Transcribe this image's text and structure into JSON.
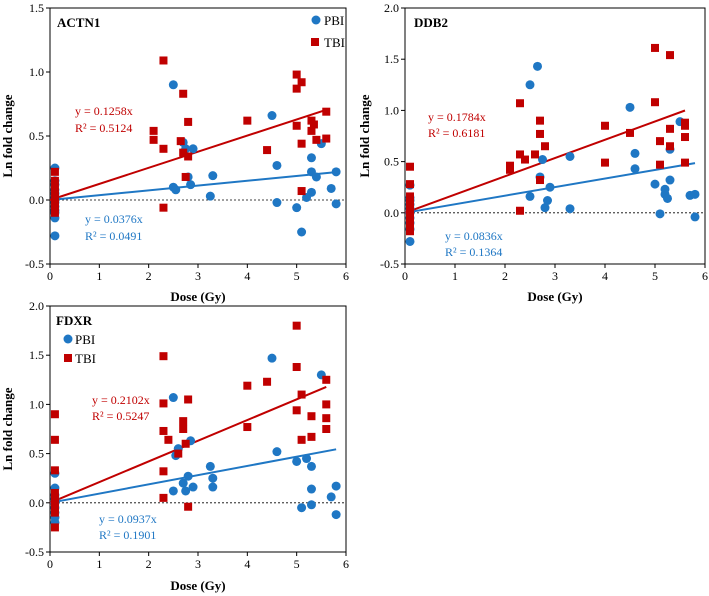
{
  "colors": {
    "PBI": "#1f77c4",
    "TBI": "#c00000",
    "axis": "#000000"
  },
  "chart_data": [
    {
      "type": "scatter",
      "title": "ACTN1",
      "xlabel": "Dose (Gy)",
      "ylabel": "Ln fold change",
      "xlim": [
        0,
        6
      ],
      "ylim": [
        -0.5,
        1.5
      ],
      "xticks": [
        "0",
        "1",
        "2",
        "3",
        "4",
        "5",
        "6"
      ],
      "yticks": [
        "-0.5",
        "0.0",
        "0.5",
        "1.0",
        "1.5"
      ],
      "legend": [
        "PBI",
        "TBI"
      ],
      "annotations": {
        "TBI_eq": "y = 0.1258x",
        "TBI_r2": "R² = 0.5124",
        "PBI_eq": "y = 0.0376x",
        "PBI_r2": "R² = 0.0491"
      },
      "series": [
        {
          "name": "PBI",
          "slope": 0.0376,
          "x": [
            0.1,
            0.1,
            0.1,
            0.1,
            0.1,
            0.1,
            0.1,
            0.1,
            0.1,
            0.1,
            0.1,
            0.1,
            2.5,
            2.5,
            2.55,
            2.7,
            2.75,
            2.8,
            2.85,
            2.9,
            3.25,
            3.3,
            4.5,
            4.6,
            4.6,
            5.0,
            5.1,
            5.2,
            5.3,
            5.3,
            5.3,
            5.4,
            5.5,
            5.7,
            5.8,
            5.8
          ],
          "y": [
            0.25,
            0.15,
            0.12,
            0.08,
            0.05,
            0.02,
            -0.02,
            -0.05,
            -0.08,
            -0.1,
            -0.14,
            -0.28,
            0.9,
            0.1,
            0.08,
            0.45,
            0.4,
            0.18,
            0.12,
            0.4,
            0.03,
            0.19,
            0.66,
            0.27,
            -0.02,
            -0.06,
            -0.25,
            0.02,
            0.33,
            0.22,
            0.06,
            0.18,
            0.44,
            0.09,
            -0.03,
            0.22
          ]
        },
        {
          "name": "TBI",
          "slope": 0.1258,
          "x": [
            0.1,
            0.1,
            0.1,
            0.1,
            0.1,
            0.1,
            0.1,
            0.1,
            0.1,
            2.1,
            2.1,
            2.3,
            2.3,
            2.3,
            2.65,
            2.7,
            2.7,
            2.75,
            2.8,
            2.8,
            4.0,
            4.4,
            5.0,
            5.0,
            5.0,
            5.1,
            5.1,
            5.1,
            5.3,
            5.3,
            5.35,
            5.4,
            5.6,
            5.6
          ],
          "y": [
            0.22,
            0.15,
            0.1,
            0.06,
            0.03,
            0.0,
            -0.03,
            -0.06,
            -0.1,
            0.54,
            0.47,
            1.09,
            0.4,
            -0.06,
            0.46,
            0.83,
            0.37,
            0.18,
            0.61,
            0.34,
            0.62,
            0.39,
            0.98,
            0.87,
            0.58,
            0.92,
            0.44,
            0.07,
            0.54,
            0.62,
            0.59,
            0.47,
            0.69,
            0.48
          ]
        }
      ]
    },
    {
      "type": "scatter",
      "title": "DDB2",
      "xlabel": "Dose (Gy)",
      "ylabel": "Ln fold change",
      "xlim": [
        0,
        6
      ],
      "ylim": [
        -0.5,
        2.0
      ],
      "xticks": [
        "0",
        "1",
        "2",
        "3",
        "4",
        "5",
        "6"
      ],
      "yticks": [
        "-0.5",
        "0.0",
        "0.5",
        "1.0",
        "1.5",
        "2.0"
      ],
      "legend": [],
      "annotations": {
        "TBI_eq": "y = 0.1784x",
        "TBI_r2": "R² = 0.6181",
        "PBI_eq": "y = 0.0836x",
        "PBI_r2": "R² = 0.1364"
      },
      "series": [
        {
          "name": "PBI",
          "slope": 0.0836,
          "x": [
            0.1,
            0.1,
            0.1,
            0.1,
            0.1,
            0.1,
            0.1,
            0.1,
            0.1,
            0.1,
            2.5,
            2.5,
            2.65,
            2.7,
            2.75,
            2.8,
            2.85,
            2.9,
            3.3,
            3.3,
            4.5,
            4.6,
            4.6,
            5.0,
            5.1,
            5.2,
            5.2,
            5.25,
            5.3,
            5.3,
            5.5,
            5.7,
            5.8,
            5.8
          ],
          "y": [
            0.27,
            0.15,
            0.12,
            0.08,
            0.04,
            0.0,
            -0.05,
            -0.1,
            -0.16,
            -0.28,
            1.25,
            0.16,
            1.43,
            0.35,
            0.52,
            0.05,
            0.12,
            0.25,
            0.55,
            0.04,
            1.03,
            0.58,
            0.43,
            0.28,
            -0.01,
            0.18,
            0.23,
            0.14,
            0.32,
            0.62,
            0.89,
            0.17,
            0.18,
            -0.04
          ]
        },
        {
          "name": "TBI",
          "slope": 0.1784,
          "x": [
            0.1,
            0.1,
            0.1,
            0.1,
            0.1,
            0.1,
            0.1,
            0.1,
            0.1,
            0.1,
            2.1,
            2.1,
            2.3,
            2.3,
            2.3,
            2.4,
            2.6,
            2.7,
            2.7,
            2.7,
            2.8,
            4.0,
            4.0,
            4.5,
            5.0,
            5.0,
            5.1,
            5.1,
            5.3,
            5.3,
            5.3,
            5.6,
            5.6,
            5.6,
            5.6
          ],
          "y": [
            0.45,
            0.28,
            0.16,
            0.1,
            0.05,
            0.0,
            -0.04,
            -0.08,
            -0.12,
            -0.18,
            0.46,
            0.42,
            1.07,
            0.57,
            0.02,
            0.52,
            0.57,
            0.9,
            0.77,
            0.32,
            0.65,
            0.85,
            0.49,
            0.78,
            1.61,
            1.08,
            0.7,
            0.47,
            1.54,
            0.82,
            0.65,
            0.88,
            0.85,
            0.74,
            0.49
          ]
        }
      ]
    },
    {
      "type": "scatter",
      "title": "FDXR",
      "xlabel": "Dose (Gy)",
      "ylabel": "Ln fold change",
      "xlim": [
        0,
        6
      ],
      "ylim": [
        -0.5,
        2.0
      ],
      "xticks": [
        "0",
        "1",
        "2",
        "3",
        "4",
        "5",
        "6"
      ],
      "yticks": [
        "-0.5",
        "0.0",
        "0.5",
        "1.0",
        "1.5",
        "2.0"
      ],
      "legend": [
        "PBI",
        "TBI"
      ],
      "annotations": {
        "TBI_eq": "y = 0.2102x",
        "TBI_r2": "R² = 0.5247",
        "PBI_eq": "y = 0.0937x",
        "PBI_r2": "R² = 0.1901"
      },
      "series": [
        {
          "name": "PBI",
          "slope": 0.0937,
          "x": [
            0.1,
            0.1,
            0.1,
            0.1,
            0.1,
            0.1,
            0.1,
            0.1,
            0.1,
            2.5,
            2.5,
            2.55,
            2.6,
            2.7,
            2.75,
            2.8,
            2.85,
            2.9,
            3.25,
            3.3,
            3.3,
            4.5,
            4.6,
            5.0,
            5.1,
            5.2,
            5.3,
            5.3,
            5.3,
            5.5,
            5.7,
            5.8,
            5.8
          ],
          "y": [
            0.15,
            0.08,
            0.04,
            0.0,
            -0.05,
            -0.1,
            -0.15,
            -0.2,
            0.3,
            1.07,
            0.12,
            0.48,
            0.55,
            0.2,
            0.12,
            0.27,
            0.63,
            0.16,
            0.37,
            0.25,
            0.16,
            1.47,
            0.52,
            0.42,
            -0.05,
            0.45,
            0.37,
            0.14,
            -0.02,
            1.3,
            0.06,
            0.17,
            -0.12
          ]
        },
        {
          "name": "TBI",
          "slope": 0.2102,
          "x": [
            0.1,
            0.1,
            0.1,
            0.1,
            0.1,
            0.1,
            0.1,
            0.1,
            0.1,
            2.3,
            2.3,
            2.3,
            2.3,
            2.3,
            2.4,
            2.6,
            2.7,
            2.7,
            2.75,
            2.8,
            2.8,
            4.0,
            4.0,
            4.4,
            5.0,
            5.0,
            5.0,
            5.1,
            5.1,
            5.3,
            5.3,
            5.6,
            5.6,
            5.6,
            5.6
          ],
          "y": [
            0.9,
            0.64,
            0.33,
            0.1,
            0.05,
            0.0,
            -0.05,
            -0.1,
            -0.25,
            1.49,
            1.01,
            0.73,
            0.32,
            0.05,
            0.64,
            0.5,
            0.83,
            0.75,
            0.6,
            1.05,
            -0.04,
            1.19,
            0.77,
            1.23,
            1.8,
            1.38,
            0.94,
            1.1,
            0.64,
            0.88,
            0.67,
            1.25,
            1.0,
            0.86,
            0.75
          ]
        }
      ]
    }
  ]
}
